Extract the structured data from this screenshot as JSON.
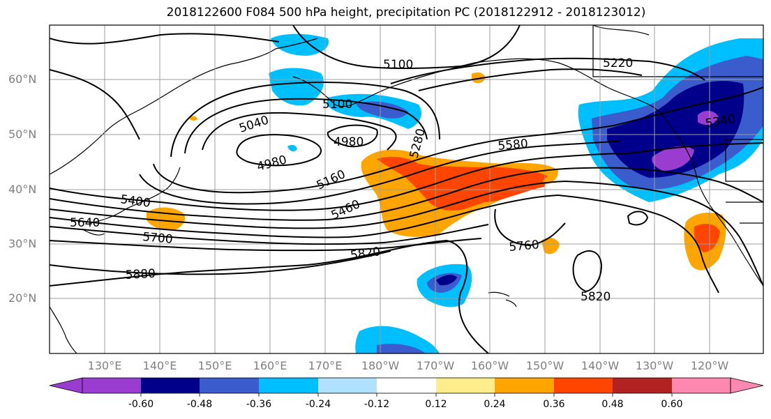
{
  "title": "2018122600 F084 500 hPa height, precipitation PC (2018122912 - 2018123012)",
  "lat_labels": [
    "60°N",
    "50°N",
    "40°N",
    "30°N",
    "20°N"
  ],
  "lon_labels": [
    "130°E",
    "140°E",
    "150°E",
    "160°E",
    "170°E",
    "180°W",
    "170°W",
    "160°W",
    "150°W",
    "140°W",
    "130°W",
    "120°W"
  ],
  "contour_labels": [
    "5100",
    "5220",
    "5100",
    "5040",
    "4980",
    "4980",
    "5280",
    "5580",
    "5160",
    "5460",
    "5400",
    "5640",
    "5700",
    "5820",
    "5880",
    "5760",
    "5820",
    "5340"
  ],
  "colorbar": {
    "labels": [
      "-0.60",
      "-0.48",
      "-0.36",
      "-0.24",
      "-0.12",
      "0.12",
      "0.24",
      "0.36",
      "0.48",
      "0.60"
    ],
    "colors": [
      "#9a3ccf",
      "#00008b",
      "#3a5ccc",
      "#00bfff",
      "#b0e2ff",
      "#ffffff",
      "#ffec8b",
      "#ffa500",
      "#ff4500",
      "#b22222",
      "#ff88b0"
    ]
  },
  "map_colors": {
    "coast": "#000000",
    "grid": "#9e9e9e",
    "contour": "#000000"
  }
}
